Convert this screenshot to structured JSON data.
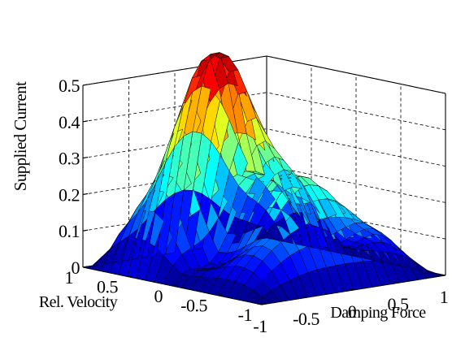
{
  "chart_data": {
    "type": "surface",
    "title": "",
    "xlabel": "Damping Force",
    "ylabel": "Rel. Velocity",
    "zlabel": "Supplied Current",
    "xlim": [
      -1,
      1
    ],
    "ylim": [
      -1,
      1
    ],
    "zlim": [
      0,
      0.5
    ],
    "x_ticks": [
      "-1",
      "-0.5",
      "0",
      "0.5",
      "1"
    ],
    "y_ticks": [
      "-1",
      "-0.5",
      "0",
      "0.5",
      "1"
    ],
    "z_ticks": [
      "0",
      "0.1",
      "0.2",
      "0.3",
      "0.4",
      "0.5"
    ],
    "grid": true,
    "colormap": "jet",
    "x": [
      -1.0,
      -0.9,
      -0.8,
      -0.7,
      -0.6,
      -0.5,
      -0.4,
      -0.3,
      -0.2,
      -0.1,
      0.0,
      0.1,
      0.2,
      0.3,
      0.4,
      0.5,
      0.6,
      0.7,
      0.8,
      0.9,
      1.0
    ],
    "y": [
      -1.0,
      -0.9,
      -0.8,
      -0.7,
      -0.6,
      -0.5,
      -0.4,
      -0.3,
      -0.2,
      -0.1,
      0.0,
      0.1,
      0.2,
      0.3,
      0.4,
      0.5,
      0.6,
      0.7,
      0.8,
      0.9,
      1.0
    ],
    "z": [
      [
        0.0,
        0.0,
        0.0,
        0.0,
        0.0,
        0.0,
        0.0,
        0.0,
        0.0,
        0.0,
        0.0,
        0.0,
        0.0,
        0.0,
        0.0,
        0.0,
        0.0,
        0.0,
        0.0,
        0.0,
        0.0
      ],
      [
        0.0,
        0.013,
        0.025,
        0.036,
        0.046,
        0.053,
        0.059,
        0.063,
        0.065,
        0.066,
        0.067,
        0.066,
        0.065,
        0.063,
        0.059,
        0.053,
        0.046,
        0.036,
        0.025,
        0.013,
        0.0
      ],
      [
        0.0,
        0.025,
        0.048,
        0.07,
        0.088,
        0.104,
        0.115,
        0.122,
        0.127,
        0.129,
        0.13,
        0.129,
        0.127,
        0.122,
        0.115,
        0.104,
        0.088,
        0.07,
        0.048,
        0.025,
        0.0
      ],
      [
        0.0,
        0.034,
        0.065,
        0.093,
        0.117,
        0.136,
        0.154,
        0.167,
        0.176,
        0.181,
        0.183,
        0.181,
        0.176,
        0.167,
        0.154,
        0.136,
        0.117,
        0.093,
        0.065,
        0.034,
        0.0
      ],
      [
        0.0,
        0.039,
        0.073,
        0.102,
        0.125,
        0.145,
        0.17,
        0.194,
        0.213,
        0.225,
        0.229,
        0.225,
        0.213,
        0.194,
        0.17,
        0.145,
        0.125,
        0.102,
        0.073,
        0.039,
        0.0
      ],
      [
        0.0,
        0.04,
        0.073,
        0.099,
        0.117,
        0.138,
        0.17,
        0.207,
        0.238,
        0.257,
        0.264,
        0.257,
        0.238,
        0.207,
        0.17,
        0.138,
        0.117,
        0.099,
        0.073,
        0.04,
        0.0
      ],
      [
        0.0,
        0.038,
        0.067,
        0.085,
        0.1,
        0.122,
        0.161,
        0.208,
        0.248,
        0.273,
        0.282,
        0.273,
        0.248,
        0.208,
        0.161,
        0.122,
        0.1,
        0.085,
        0.067,
        0.038,
        0.0
      ],
      [
        0.0,
        0.035,
        0.056,
        0.067,
        0.079,
        0.104,
        0.147,
        0.2,
        0.245,
        0.273,
        0.283,
        0.273,
        0.245,
        0.2,
        0.147,
        0.104,
        0.079,
        0.067,
        0.056,
        0.035,
        0.0
      ],
      [
        0.0,
        0.031,
        0.046,
        0.05,
        0.059,
        0.086,
        0.132,
        0.187,
        0.234,
        0.263,
        0.274,
        0.263,
        0.234,
        0.187,
        0.132,
        0.086,
        0.059,
        0.05,
        0.046,
        0.031,
        0.0
      ],
      [
        0.0,
        0.029,
        0.04,
        0.04,
        0.048,
        0.076,
        0.123,
        0.178,
        0.226,
        0.256,
        0.266,
        0.256,
        0.226,
        0.178,
        0.123,
        0.076,
        0.048,
        0.04,
        0.04,
        0.029,
        0.0
      ],
      [
        0.0,
        0.028,
        0.038,
        0.037,
        0.045,
        0.073,
        0.12,
        0.175,
        0.223,
        0.253,
        0.263,
        0.253,
        0.223,
        0.175,
        0.12,
        0.073,
        0.045,
        0.037,
        0.038,
        0.028,
        0.0
      ],
      [
        0.0,
        0.047,
        0.073,
        0.087,
        0.1,
        0.123,
        0.158,
        0.199,
        0.234,
        0.257,
        0.264,
        0.257,
        0.234,
        0.199,
        0.158,
        0.123,
        0.1,
        0.087,
        0.073,
        0.047,
        0.0
      ],
      [
        0.0,
        0.07,
        0.117,
        0.15,
        0.167,
        0.18,
        0.202,
        0.226,
        0.247,
        0.26,
        0.265,
        0.26,
        0.247,
        0.226,
        0.202,
        0.18,
        0.167,
        0.15,
        0.117,
        0.07,
        0.0
      ],
      [
        0.0,
        0.089,
        0.154,
        0.2,
        0.228,
        0.246,
        0.27,
        0.305,
        0.337,
        0.358,
        0.366,
        0.358,
        0.337,
        0.305,
        0.27,
        0.246,
        0.228,
        0.2,
        0.154,
        0.089,
        0.0
      ],
      [
        0.0,
        0.1,
        0.174,
        0.226,
        0.261,
        0.297,
        0.346,
        0.404,
        0.453,
        0.485,
        0.496,
        0.485,
        0.453,
        0.404,
        0.346,
        0.297,
        0.261,
        0.226,
        0.174,
        0.1,
        0.0
      ],
      [
        0.0,
        0.101,
        0.174,
        0.226,
        0.265,
        0.313,
        0.381,
        0.456,
        0.52,
        0.561,
        0.576,
        0.561,
        0.52,
        0.456,
        0.381,
        0.313,
        0.265,
        0.226,
        0.174,
        0.101,
        0.0
      ],
      [
        0.0,
        0.093,
        0.159,
        0.206,
        0.243,
        0.294,
        0.365,
        0.443,
        0.509,
        0.551,
        0.566,
        0.551,
        0.509,
        0.443,
        0.365,
        0.294,
        0.243,
        0.206,
        0.159,
        0.093,
        0.0
      ],
      [
        0.0,
        0.076,
        0.13,
        0.168,
        0.199,
        0.241,
        0.302,
        0.369,
        0.425,
        0.461,
        0.473,
        0.461,
        0.425,
        0.369,
        0.302,
        0.241,
        0.199,
        0.168,
        0.13,
        0.076,
        0.0
      ],
      [
        0.0,
        0.055,
        0.094,
        0.121,
        0.143,
        0.174,
        0.218,
        0.267,
        0.308,
        0.334,
        0.343,
        0.334,
        0.308,
        0.267,
        0.218,
        0.174,
        0.143,
        0.121,
        0.094,
        0.055,
        0.0
      ],
      [
        0.0,
        0.028,
        0.048,
        0.062,
        0.074,
        0.09,
        0.113,
        0.138,
        0.159,
        0.172,
        0.177,
        0.172,
        0.159,
        0.138,
        0.113,
        0.09,
        0.074,
        0.062,
        0.048,
        0.028,
        0.0
      ],
      [
        0.0,
        0.0,
        0.0,
        0.0,
        0.0,
        0.0,
        0.0,
        0.0,
        0.0,
        0.0,
        0.0,
        0.0,
        0.0,
        0.0,
        0.0,
        0.0,
        0.0,
        0.0,
        0.0,
        0.0,
        0.0
      ]
    ]
  }
}
